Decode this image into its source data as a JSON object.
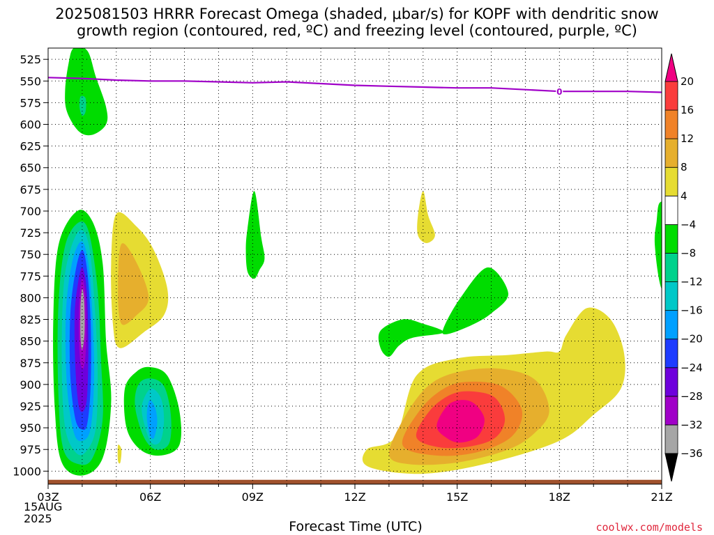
{
  "title": "2025081503 HRRR Forecast Omega (shaded, μbar/s) for KOPF with dendritic snow\ngrowth region (contoured, red, ºC) and freezing level (contoured, purple, ºC)",
  "credit": "coolwx.com/models",
  "date_label": "15AUG\n2025",
  "chart_data": {
    "type": "heatmap",
    "title": "2025081503 HRRR Forecast Omega (shaded, μbar/s) for KOPF with dendritic snow growth region (contoured, red, ºC) and freezing level (contoured, purple, ºC)",
    "xlabel": "Forecast Time (UTC)",
    "ylabel": "",
    "x_ticks": [
      "03Z",
      "06Z",
      "09Z",
      "12Z",
      "15Z",
      "18Z",
      "21Z"
    ],
    "x_range": [
      3,
      21
    ],
    "y_ticks": [
      525,
      550,
      575,
      600,
      625,
      650,
      675,
      700,
      725,
      750,
      775,
      800,
      825,
      850,
      875,
      900,
      925,
      950,
      975,
      1000
    ],
    "y_range": [
      512,
      1015
    ],
    "y_inverted": true,
    "grid": true,
    "colorbar": {
      "levels": [
        -36,
        -32,
        -28,
        -24,
        -20,
        -16,
        -12,
        -8,
        -4,
        4,
        8,
        12,
        16,
        20
      ],
      "colors": [
        "#000000",
        "#a6a6a6",
        "#a000c8",
        "#6e00dc",
        "#1e3cff",
        "#00a0ff",
        "#00c8c8",
        "#00d28c",
        "#00dc00",
        "#ffffff",
        "#e6dc32",
        "#e6af2d",
        "#f08228",
        "#fa3c3c",
        "#f00082"
      ]
    },
    "omega_features": [
      {
        "label": "upward motion, upper levels",
        "time_utc": [
          3.4,
          4.8
        ],
        "pressure_hpa": [
          512,
          612
        ],
        "min_value": -16
      },
      {
        "label": "strong upward motion core",
        "time_utc": [
          3.2,
          4.9
        ],
        "pressure_hpa": [
          700,
          1005
        ],
        "min_value": -36
      },
      {
        "label": "downward motion band",
        "time_utc": [
          4.9,
          6.5
        ],
        "pressure_hpa": [
          703,
          858
        ],
        "max_value": 12
      },
      {
        "label": "upward motion, low levels",
        "time_utc": [
          5.2,
          6.9
        ],
        "pressure_hpa": [
          880,
          982
        ],
        "min_value": -20
      },
      {
        "label": "weak upward motion",
        "time_utc": [
          8.8,
          9.3
        ],
        "pressure_hpa": [
          677,
          778
        ],
        "min_value": -8
      },
      {
        "label": "weak downward motion",
        "time_utc": [
          13.8,
          14.3
        ],
        "pressure_hpa": [
          677,
          735
        ],
        "max_value": 8
      },
      {
        "label": "weak upward motion",
        "time_utc": [
          12.7,
          16.5
        ],
        "pressure_hpa": [
          762,
          868
        ],
        "min_value": -8
      },
      {
        "label": "downward motion maximum",
        "time_utc": [
          12.3,
          19.9
        ],
        "pressure_hpa": [
          812,
          1003
        ],
        "max_value": 20
      },
      {
        "label": "weak upward motion, edge",
        "time_utc": [
          20.8,
          21.0
        ],
        "pressure_hpa": [
          690,
          790
        ],
        "min_value": -8
      }
    ],
    "freezing_level": {
      "label": "0",
      "time_utc": [
        3,
        4,
        5,
        6,
        7,
        8,
        9,
        10,
        11,
        12,
        13,
        14,
        15,
        16,
        17,
        18,
        19,
        20,
        21
      ],
      "pressure_hpa": [
        546,
        547,
        549,
        550,
        550,
        551,
        552,
        551,
        553,
        555,
        556,
        557,
        558,
        558,
        560,
        562,
        562,
        562,
        563
      ]
    },
    "ground": {
      "pressure_hpa": 1013
    }
  }
}
